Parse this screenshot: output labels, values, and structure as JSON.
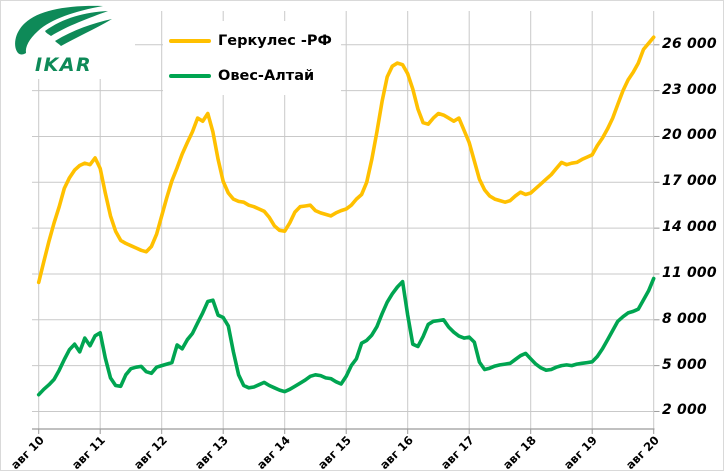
{
  "logo": {
    "text": "IKAR",
    "color": "#0E8A58"
  },
  "chart_data": {
    "type": "line",
    "title": "",
    "x_tick_labels": [
      "авг 10",
      "авг 11",
      "авг 12",
      "авг 13",
      "авг 14",
      "авг 15",
      "авг 16",
      "авг 17",
      "авг 18",
      "авг 19",
      "авг 20"
    ],
    "x_unit": "months, Aug 2010 – Aug 2020, monthly points",
    "y_ticks": [
      {
        "label": "26 000",
        "value": 26000
      },
      {
        "label": "23 000",
        "value": 23000
      },
      {
        "label": "20 000",
        "value": 20000
      },
      {
        "label": "17 000",
        "value": 17000
      },
      {
        "label": "14 000",
        "value": 14000
      },
      {
        "label": "11 000",
        "value": 11000
      },
      {
        "label": "8 000",
        "value": 8000
      },
      {
        "label": "5 000",
        "value": 5000
      },
      {
        "label": "2 000",
        "value": 2000
      }
    ],
    "ylim": [
      2000,
      26000
    ],
    "y_axis_side": "right",
    "grid": true,
    "legend_position": "top-left",
    "gridline_color": "#c9c9c9",
    "series": [
      {
        "name": "Геркулес -РФ",
        "color": "#FFC000",
        "values": [
          10450,
          11800,
          13150,
          14350,
          15400,
          16600,
          17300,
          17800,
          18100,
          18250,
          18150,
          18600,
          17900,
          16300,
          14800,
          13800,
          13200,
          13000,
          12850,
          12700,
          12550,
          12450,
          12800,
          13600,
          14800,
          16000,
          17100,
          17950,
          18850,
          19600,
          20300,
          21200,
          21000,
          21500,
          20300,
          18500,
          17050,
          16300,
          15900,
          15750,
          15700,
          15500,
          15400,
          15250,
          15100,
          14700,
          14150,
          13850,
          13800,
          14350,
          15050,
          15400,
          15450,
          15500,
          15150,
          15000,
          14900,
          14800,
          15000,
          15150,
          15250,
          15500,
          15900,
          16200,
          17000,
          18500,
          20300,
          22300,
          23900,
          24600,
          24800,
          24700,
          24100,
          23100,
          21800,
          20900,
          20800,
          21200,
          21500,
          21400,
          21200,
          21000,
          21200,
          20400,
          19600,
          18400,
          17200,
          16500,
          16100,
          15900,
          15800,
          15700,
          15800,
          16100,
          16350,
          16200,
          16300,
          16600,
          16900,
          17200,
          17500,
          17900,
          18300,
          18150,
          18250,
          18300,
          18500,
          18650,
          18800,
          19400,
          19900,
          20500,
          21200,
          22100,
          23000,
          23700,
          24200,
          24800,
          25700,
          26100,
          26500
        ]
      },
      {
        "name": "Овес-Алтай",
        "color": "#00A551",
        "values": [
          3100,
          3450,
          3750,
          4100,
          4700,
          5400,
          6050,
          6400,
          5900,
          6800,
          6300,
          6950,
          7150,
          5500,
          4200,
          3700,
          3650,
          4400,
          4800,
          4900,
          4950,
          4600,
          4500,
          4900,
          5000,
          5100,
          5200,
          6350,
          6100,
          6700,
          7100,
          7800,
          8450,
          9200,
          9280,
          8300,
          8150,
          7600,
          5900,
          4400,
          3700,
          3550,
          3600,
          3750,
          3900,
          3700,
          3550,
          3400,
          3300,
          3450,
          3650,
          3850,
          4050,
          4300,
          4400,
          4350,
          4200,
          4150,
          3950,
          3800,
          4300,
          5000,
          5450,
          6470,
          6650,
          7000,
          7550,
          8400,
          9150,
          9700,
          10150,
          10500,
          8300,
          6400,
          6250,
          6900,
          7700,
          7900,
          7950,
          8000,
          7520,
          7190,
          6930,
          6800,
          6870,
          6540,
          5230,
          4750,
          4830,
          4970,
          5050,
          5100,
          5150,
          5400,
          5650,
          5800,
          5450,
          5100,
          4850,
          4700,
          4750,
          4900,
          5000,
          5050,
          5000,
          5100,
          5150,
          5200,
          5250,
          5600,
          6100,
          6700,
          7300,
          7900,
          8200,
          8450,
          8550,
          8700,
          9300,
          9900,
          10700
        ]
      }
    ]
  }
}
